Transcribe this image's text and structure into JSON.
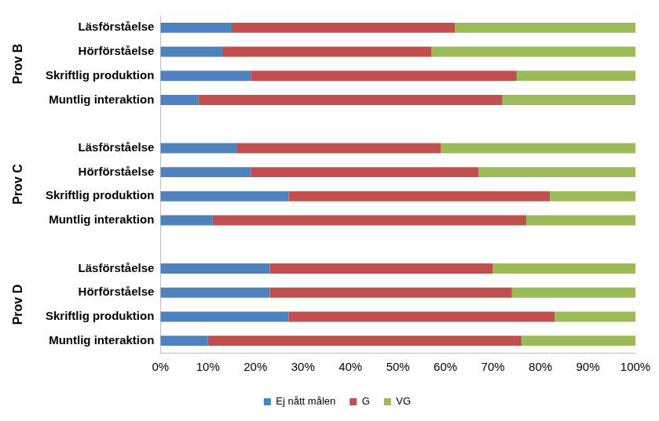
{
  "chart_data": {
    "type": "bar",
    "orientation": "horizontal",
    "stacked": true,
    "grid": false,
    "legend": "bottom",
    "groups": [
      "Prov B",
      "Prov C",
      "Prov D"
    ],
    "categories": [
      "Läsförståelse",
      "Hörförståelse",
      "Skriftlig produktion",
      "Muntlig interaktion",
      null,
      "Läsförståelse",
      "Hörförståelse",
      "Skriftlig produktion",
      "Muntlig interaktion",
      null,
      "Läsförståelse",
      "Hörförståelse",
      "Skriftlig produktion",
      "Muntlig interaktion"
    ],
    "series": [
      {
        "name": "Ej nått målen",
        "color": "#4f81bd",
        "values": [
          15,
          13,
          19,
          8,
          null,
          16,
          19,
          27,
          11,
          null,
          23,
          23,
          27,
          10
        ]
      },
      {
        "name": "G",
        "color": "#c0504d",
        "values": [
          47,
          44,
          56,
          64,
          null,
          43,
          48,
          55,
          66,
          null,
          47,
          51,
          56,
          66
        ]
      },
      {
        "name": "VG",
        "color": "#9bbb59",
        "values": [
          38,
          43,
          25,
          28,
          null,
          41,
          33,
          18,
          23,
          null,
          30,
          26,
          17,
          24
        ]
      }
    ],
    "xlim": [
      0,
      100
    ],
    "xticks": [
      {
        "value": 0,
        "label": "0%"
      },
      {
        "value": 10,
        "label": "10%"
      },
      {
        "value": 20,
        "label": "20%"
      },
      {
        "value": 30,
        "label": "30%"
      },
      {
        "value": 40,
        "label": "40%"
      },
      {
        "value": 50,
        "label": "50%"
      },
      {
        "value": 60,
        "label": "60%"
      },
      {
        "value": 70,
        "label": "70%"
      },
      {
        "value": 80,
        "label": "80%"
      },
      {
        "value": 90,
        "label": "90%"
      },
      {
        "value": 100,
        "label": "100%"
      }
    ]
  }
}
